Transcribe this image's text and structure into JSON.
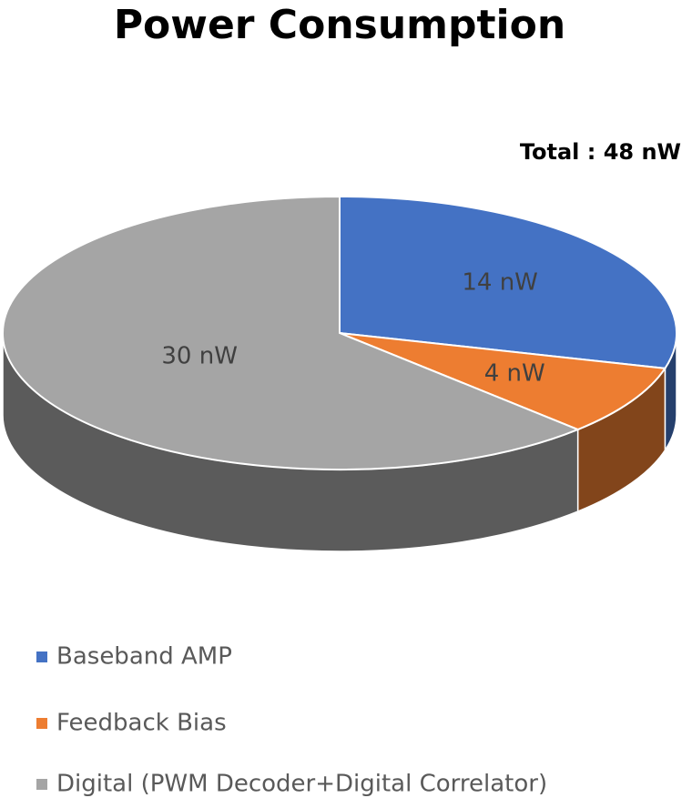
{
  "chart_data": {
    "type": "pie",
    "title": "Power Consumption",
    "annotation": "Total : 48 nW",
    "categories": [
      "Baseband AMP",
      "Feedback Bias",
      "Digital (PWM Decoder+Digital Correlator)"
    ],
    "values": [
      14,
      4,
      30
    ],
    "value_labels": [
      "14 nW",
      "4 nW",
      "30 nW"
    ],
    "colors": [
      "#4472c4",
      "#ed7d31",
      "#a5a5a5"
    ],
    "legend": "bottom"
  }
}
